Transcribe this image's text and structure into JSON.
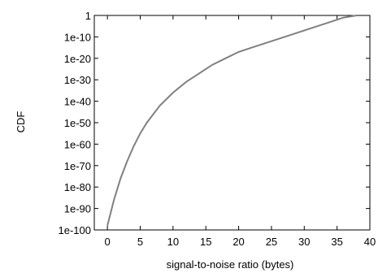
{
  "chart_data": {
    "type": "line",
    "title": "",
    "xlabel": "signal-to-noise ratio (bytes)",
    "ylabel": "CDF",
    "xlim": [
      -2,
      40
    ],
    "ylim_log10": [
      -100,
      0
    ],
    "y_scale": "log",
    "x_ticks": [
      0,
      5,
      10,
      15,
      20,
      25,
      30,
      35,
      40
    ],
    "x_tick_labels": [
      "0",
      "5",
      "10",
      "15",
      "20",
      "25",
      "30",
      "35",
      "40"
    ],
    "y_tick_exponents": [
      0,
      -10,
      -20,
      -30,
      -40,
      -50,
      -60,
      -70,
      -80,
      -90,
      -100
    ],
    "y_tick_labels": [
      "1",
      "1e-10",
      "1e-20",
      "1e-30",
      "1e-40",
      "1e-50",
      "1e-60",
      "1e-70",
      "1e-80",
      "1e-90",
      "1e-100"
    ],
    "grid": false,
    "line_color": "#808080",
    "series": [
      {
        "points": [
          {
            "x": 0,
            "y": "1e-98"
          },
          {
            "x": 1,
            "y": "1e-86"
          },
          {
            "x": 2,
            "y": "1e-76"
          },
          {
            "x": 3,
            "y": "1e-68"
          },
          {
            "x": 4,
            "y": "1e-61"
          },
          {
            "x": 5,
            "y": "1e-55"
          },
          {
            "x": 6,
            "y": "1e-50"
          },
          {
            "x": 8,
            "y": "1e-42"
          },
          {
            "x": 10,
            "y": "1e-36"
          },
          {
            "x": 12,
            "y": "1e-31"
          },
          {
            "x": 14,
            "y": "1e-27"
          },
          {
            "x": 16,
            "y": "1e-23"
          },
          {
            "x": 18,
            "y": "1e-20"
          },
          {
            "x": 20,
            "y": "1e-17"
          },
          {
            "x": 22,
            "y": "1e-15"
          },
          {
            "x": 25,
            "y": "1e-12"
          },
          {
            "x": 28,
            "y": "1e-9"
          },
          {
            "x": 31,
            "y": "1e-6"
          },
          {
            "x": 34,
            "y": "1e-3"
          },
          {
            "x": 36,
            "y": "1e-1"
          },
          {
            "x": 38,
            "y": "1"
          }
        ]
      }
    ]
  }
}
